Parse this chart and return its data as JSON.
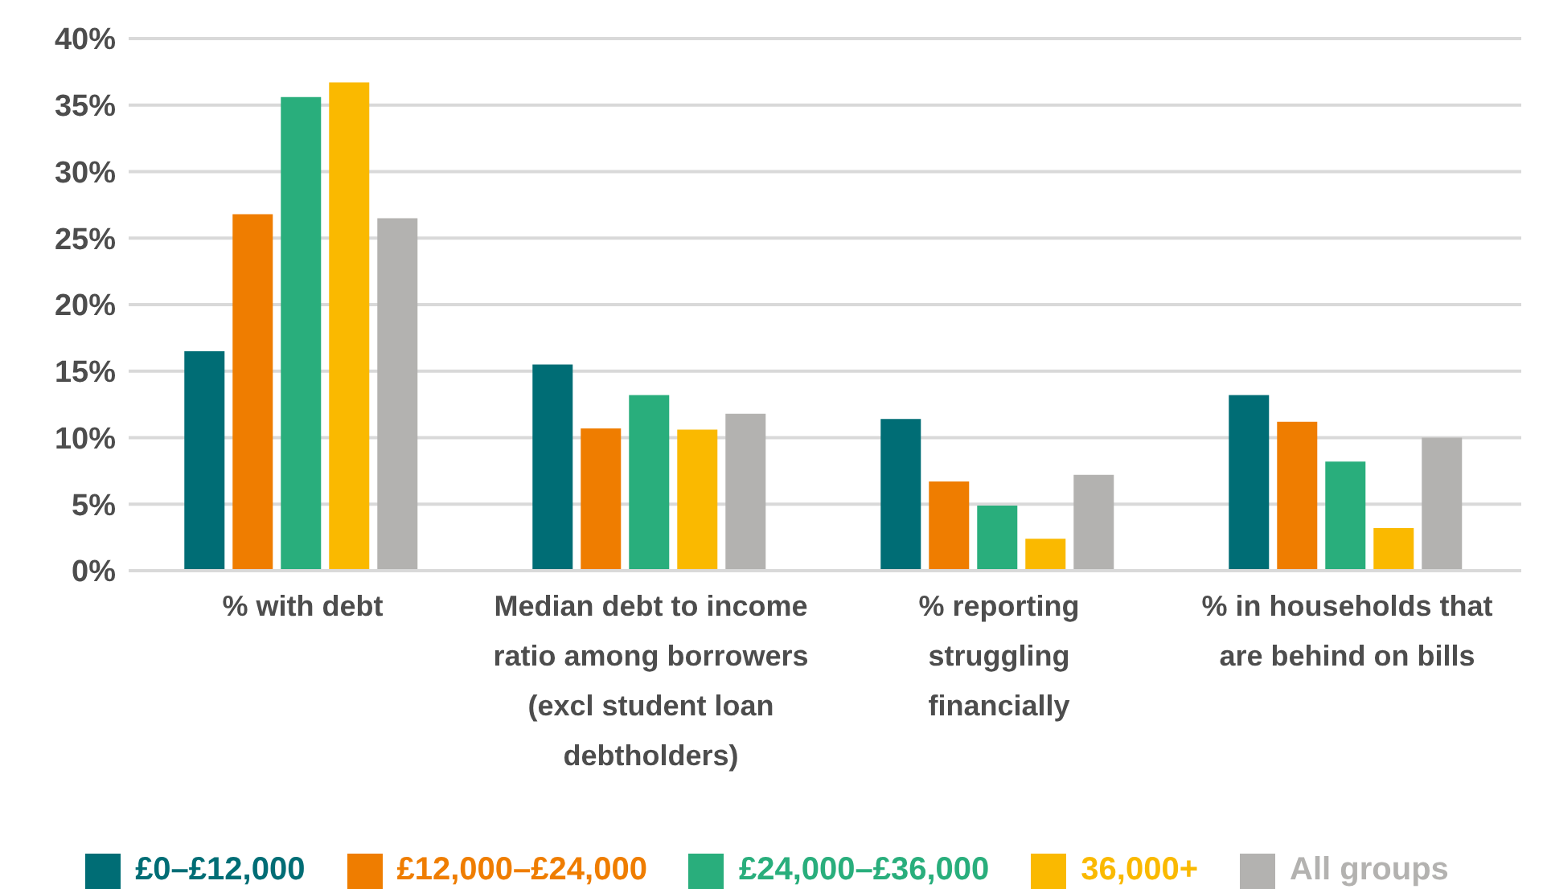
{
  "chart_data": {
    "type": "bar",
    "categories": [
      "% with debt",
      "Median debt to income ratio among borrowers (excl student loan debtholders)",
      "% reporting struggling financially",
      "% in households that are behind on bills"
    ],
    "series": [
      {
        "name": "£0–£12,000",
        "color": "#006d75",
        "values": [
          16.5,
          15.5,
          11.4,
          13.2
        ]
      },
      {
        "name": "£12,000–£24,000",
        "color": "#ef7d00",
        "values": [
          26.8,
          10.7,
          6.7,
          11.2
        ]
      },
      {
        "name": "£24,000–£36,000",
        "color": "#29ae7c",
        "values": [
          35.6,
          13.2,
          4.9,
          8.2
        ]
      },
      {
        "name": "36,000+",
        "color": "#fab900",
        "values": [
          36.7,
          10.6,
          2.4,
          3.2
        ]
      },
      {
        "name": "All groups",
        "color": "#b3b2b0",
        "values": [
          26.5,
          11.8,
          7.2,
          10.0
        ]
      }
    ],
    "ylim": [
      0,
      40
    ],
    "yticks": [
      {
        "value": 0,
        "label": "0%"
      },
      {
        "value": 5,
        "label": "5%"
      },
      {
        "value": 10,
        "label": "10%"
      },
      {
        "value": 15,
        "label": "15%"
      },
      {
        "value": 20,
        "label": "20%"
      },
      {
        "value": 25,
        "label": "25%"
      },
      {
        "value": 30,
        "label": "30%"
      },
      {
        "value": 35,
        "label": "35%"
      },
      {
        "value": 40,
        "label": "40%"
      }
    ],
    "grid": "y",
    "legend": "bottom"
  }
}
